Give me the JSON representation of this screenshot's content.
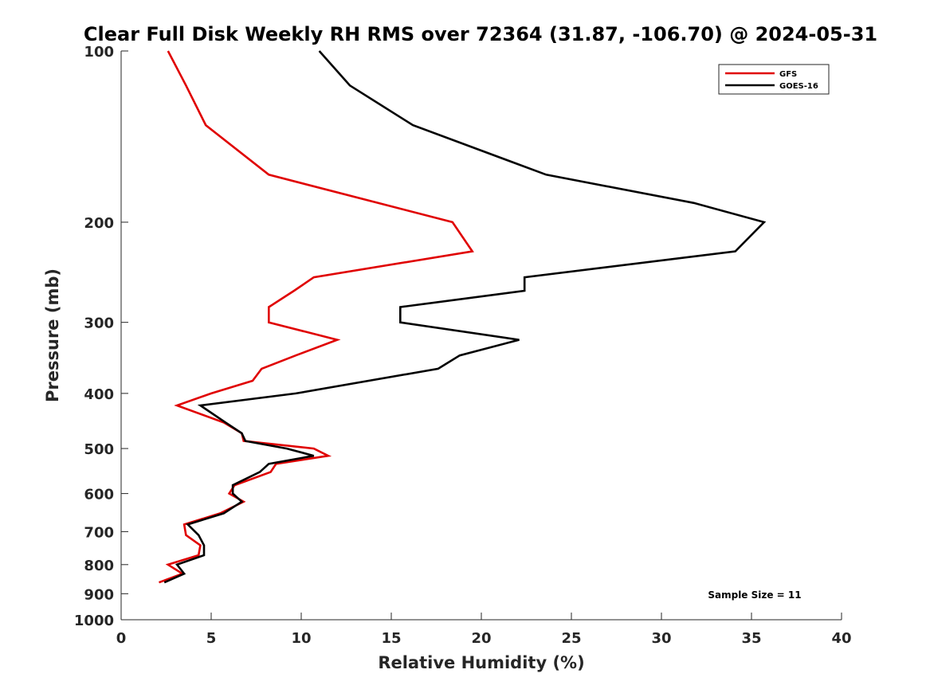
{
  "chart_data": {
    "type": "line",
    "title": "Clear Full Disk Weekly RH RMS over 72364 (31.87, -106.70) @ 2024-05-31",
    "xlabel": "Relative Humidity (%)",
    "ylabel": "Pressure (mb)",
    "xlim": [
      0,
      40
    ],
    "ylim": [
      100,
      1000
    ],
    "y_scale": "log",
    "y_reversed": true,
    "grid": false,
    "legend_position": "top-right",
    "x_ticks": [
      0,
      5,
      10,
      15,
      20,
      25,
      30,
      35,
      40
    ],
    "x_tick_labels": [
      "0",
      "5",
      "10",
      "15",
      "20",
      "25",
      "30",
      "35",
      "40"
    ],
    "y_ticks": [
      100,
      200,
      300,
      400,
      500,
      600,
      700,
      800,
      900,
      1000
    ],
    "y_tick_labels": [
      "100",
      "200",
      "300",
      "400",
      "500",
      "600",
      "700",
      "800",
      "900",
      "1000"
    ],
    "annotation": "Sample Size = 11",
    "series": [
      {
        "name": "GFS",
        "color": "#e00000",
        "points": [
          [
            2.6,
            100
          ],
          [
            3.6,
            115
          ],
          [
            4.7,
            135
          ],
          [
            8.2,
            165
          ],
          [
            18.4,
            200
          ],
          [
            19.5,
            225
          ],
          [
            10.7,
            250
          ],
          [
            9.6,
            264
          ],
          [
            8.2,
            282
          ],
          [
            8.2,
            300
          ],
          [
            12.0,
            322
          ],
          [
            9.7,
            343
          ],
          [
            7.8,
            362
          ],
          [
            7.3,
            380
          ],
          [
            5.0,
            400
          ],
          [
            3.1,
            420
          ],
          [
            5.7,
            450
          ],
          [
            6.7,
            470
          ],
          [
            6.8,
            485
          ],
          [
            10.7,
            500
          ],
          [
            11.5,
            515
          ],
          [
            8.6,
            532
          ],
          [
            8.3,
            550
          ],
          [
            6.3,
            580
          ],
          [
            6.0,
            600
          ],
          [
            6.8,
            620
          ],
          [
            5.5,
            650
          ],
          [
            3.5,
            680
          ],
          [
            3.6,
            710
          ],
          [
            4.4,
            740
          ],
          [
            4.3,
            770
          ],
          [
            2.6,
            800
          ],
          [
            3.4,
            830
          ],
          [
            2.1,
            860
          ]
        ]
      },
      {
        "name": "GOES-16",
        "color": "#000000",
        "points": [
          [
            11.0,
            100
          ],
          [
            12.7,
            115
          ],
          [
            16.2,
            135
          ],
          [
            23.6,
            165
          ],
          [
            31.8,
            185
          ],
          [
            35.7,
            200
          ],
          [
            34.1,
            225
          ],
          [
            22.4,
            250
          ],
          [
            22.4,
            264
          ],
          [
            15.5,
            282
          ],
          [
            15.5,
            300
          ],
          [
            22.1,
            322
          ],
          [
            18.8,
            343
          ],
          [
            17.6,
            362
          ],
          [
            9.7,
            400
          ],
          [
            4.4,
            420
          ],
          [
            5.8,
            450
          ],
          [
            6.7,
            470
          ],
          [
            6.9,
            485
          ],
          [
            9.2,
            500
          ],
          [
            10.7,
            515
          ],
          [
            8.2,
            532
          ],
          [
            7.7,
            550
          ],
          [
            6.2,
            580
          ],
          [
            6.2,
            600
          ],
          [
            6.7,
            620
          ],
          [
            5.7,
            650
          ],
          [
            3.7,
            680
          ],
          [
            4.3,
            710
          ],
          [
            4.6,
            740
          ],
          [
            4.6,
            770
          ],
          [
            3.1,
            800
          ],
          [
            3.5,
            830
          ],
          [
            2.4,
            860
          ]
        ]
      }
    ]
  }
}
